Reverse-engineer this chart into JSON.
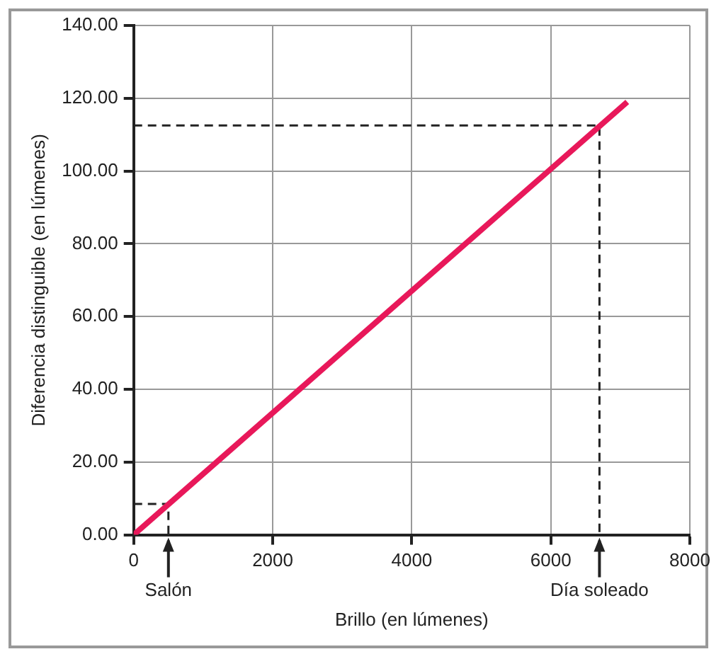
{
  "chart_data": {
    "type": "line",
    "xlabel": "Brillo (en lúmenes)",
    "ylabel": "Diferencia distinguible (en lúmenes)",
    "xlim": [
      0,
      8000
    ],
    "xticks": [
      0,
      2000,
      4000,
      6000,
      8000
    ],
    "ylim": [
      0,
      140
    ],
    "yticks": [
      {
        "value": 0,
        "label": "0.00"
      },
      {
        "value": 20,
        "label": "20.00"
      },
      {
        "value": 40,
        "label": "40.00"
      },
      {
        "value": 60,
        "label": "60.00"
      },
      {
        "value": 80,
        "label": "80.00"
      },
      {
        "value": 100,
        "label": "100.00"
      },
      {
        "value": 120,
        "label": "120.00"
      },
      {
        "value": 140,
        "label": "140.00"
      }
    ],
    "grid": true,
    "marker": "none",
    "series": [
      {
        "x": [
          0,
          7100
        ],
        "values": [
          0,
          119
        ],
        "color": "#e8185a",
        "line_style": "solid"
      },
      {
        "x": [
          0,
          500,
          500
        ],
        "values": [
          8.5,
          8.5,
          0
        ],
        "color": "#222222",
        "line_style": "dashed"
      },
      {
        "x": [
          0,
          6700,
          6700
        ],
        "values": [
          112.5,
          112.5,
          0
        ],
        "color": "#222222",
        "line_style": "dashed"
      }
    ],
    "annotations": [
      {
        "text": "Salón",
        "x": 500,
        "y": 0
      },
      {
        "text": "Día soleado",
        "x": 6700,
        "y": 0
      }
    ]
  }
}
